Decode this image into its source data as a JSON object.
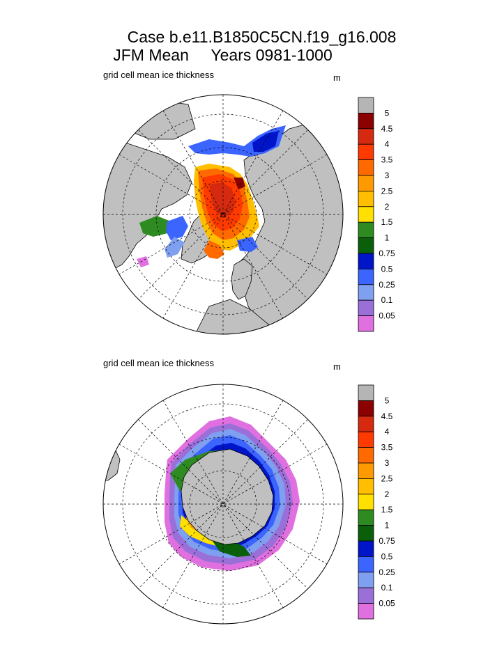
{
  "title": {
    "line1": "Case b.e11.B1850C5CN.f19_g16.008",
    "line2": "JFM Mean     Years 0981-1000"
  },
  "panels": [
    {
      "name": "north",
      "label": "grid cell mean ice thickness",
      "unit": "m",
      "hemisphere": "north"
    },
    {
      "name": "south",
      "label": "grid cell mean ice thickness",
      "unit": "m",
      "hemisphere": "south"
    }
  ],
  "colorbar": {
    "levels": [
      "5",
      "4.5",
      "4",
      "3.5",
      "3",
      "2.5",
      "2",
      "1.5",
      "1",
      "0.75",
      "0.5",
      "0.25",
      "0.1",
      "0.05"
    ],
    "colors": [
      "#b5b5b5",
      "#8b0000",
      "#d62a10",
      "#ff3a00",
      "#ff6a00",
      "#ff9900",
      "#ffbf00",
      "#ffe000",
      "#2e8b22",
      "#0a5f0a",
      "#0014c8",
      "#3c64ff",
      "#7fa0f0",
      "#9a6fd8",
      "#e070e0"
    ]
  },
  "map_colors": {
    "land": "#c0c0c0",
    "ocean": "#ffffff",
    "grid": "#000000"
  }
}
